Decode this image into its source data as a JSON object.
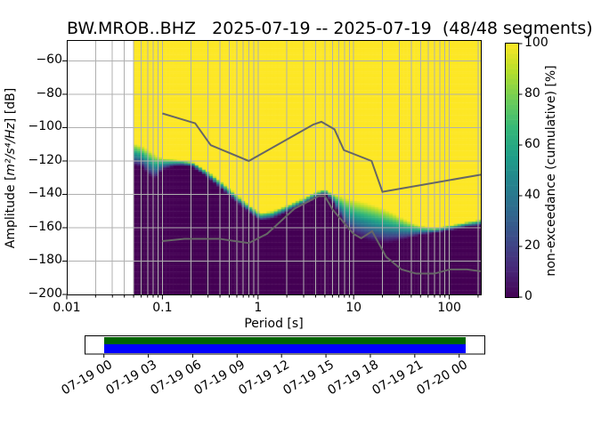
{
  "title": "BW.MROB..BHZ   2025-07-19 -- 2025-07-19  (48/48 segments)",
  "axes": {
    "xlabel": "Period [s]",
    "ylabel": {
      "pre": "Amplitude [",
      "math": "m²/s⁴/Hz",
      "post": "] [dB]"
    },
    "x_tick_labels": [
      "0.01",
      "0.1",
      "1",
      "10",
      "100"
    ],
    "y_tick_labels": [
      "−60",
      "−80",
      "−100",
      "−120",
      "−140",
      "−160",
      "−180",
      "−200"
    ]
  },
  "colorbar": {
    "label": "non-exceedance (cumulative) [%]",
    "tick_labels": [
      "0",
      "20",
      "40",
      "60",
      "80",
      "100"
    ]
  },
  "coverage": {
    "tick_labels": [
      "07-19 00",
      "07-19 03",
      "07-19 06",
      "07-19 09",
      "07-19 12",
      "07-19 15",
      "07-19 18",
      "07-19 21",
      "07-20 00"
    ]
  },
  "colors": {
    "background": "#ffffff",
    "grid": "#b0b0b0",
    "spine": "#000000",
    "noise_model_line": "#666666",
    "coverage_green": "#006400",
    "coverage_blue": "#0000ff",
    "viridis_stops": [
      "#440154",
      "#482878",
      "#3e4a89",
      "#31688e",
      "#26828e",
      "#1f9e89",
      "#35b779",
      "#6dcd59",
      "#b4de2c",
      "#fde725"
    ]
  },
  "chart_data": {
    "type": "heatmap",
    "title": "BW.MROB..BHZ   2025-07-19 -- 2025-07-19  (48/48 segments)",
    "xlabel": "Period [s]",
    "ylabel": "Amplitude [m²/s⁴/Hz] [dB]",
    "xscale": "log",
    "xlim": [
      0.01,
      213.6
    ],
    "ylim": [
      -200,
      -47.5
    ],
    "x_ticks": [
      0.01,
      0.1,
      1,
      10,
      100
    ],
    "y_ticks": [
      -60,
      -80,
      -100,
      -120,
      -140,
      -160,
      -180,
      -200
    ],
    "grid": true,
    "colorbar": {
      "label": "non-exceedance (cumulative) [%]",
      "range": [
        0,
        100
      ],
      "ticks": [
        0,
        20,
        40,
        60,
        80,
        100
      ],
      "colormap": "viridis",
      "steps": 50
    },
    "distribution_band": {
      "description": "non-exceedance transition band: db_100pct = level above which color is 100% (yellow), db_0pct = level below which color is 0% (dark purple); data start at 0.05 s, white (no data) below that period",
      "min_period_s": 0.05,
      "period_bin_octaves": 0.125,
      "db_bin_width": 1.25,
      "periods_s": [
        0.05,
        0.062,
        0.075,
        0.085,
        0.1,
        0.13,
        0.16,
        0.21,
        0.3,
        0.42,
        0.6,
        0.8,
        1.05,
        1.4,
        2.0,
        3.0,
        4.2,
        5.0,
        6.0,
        7.0,
        8.5,
        10,
        13,
        17,
        22,
        28,
        36,
        48,
        70,
        100,
        150,
        215
      ],
      "db_100pct": [
        -109,
        -111,
        -114,
        -116,
        -118,
        -119,
        -119.5,
        -120.5,
        -126,
        -132.5,
        -140,
        -146,
        -151,
        -150,
        -146.5,
        -142,
        -138,
        -136.8,
        -139.5,
        -140.5,
        -142,
        -143,
        -144.5,
        -146.5,
        -149,
        -152,
        -155.5,
        -158.5,
        -160,
        -158.5,
        -156.5,
        -155
      ],
      "db_0pct": [
        -122.5,
        -124,
        -129,
        -131,
        -125,
        -123,
        -122.5,
        -123.5,
        -130,
        -137,
        -144.5,
        -150.5,
        -155.5,
        -154.5,
        -150.5,
        -146,
        -141.5,
        -139.5,
        -144,
        -152,
        -160.5,
        -164.5,
        -167,
        -168.5,
        -169,
        -168,
        -166.5,
        -164.5,
        -163,
        -161.5,
        -159.5,
        -158.5
      ]
    },
    "noise_models": {
      "nhnm_period_db": [
        [
          0.1,
          -91.5
        ],
        [
          0.22,
          -97.4
        ],
        [
          0.32,
          -110.5
        ],
        [
          0.8,
          -120
        ],
        [
          3.8,
          -98.1
        ],
        [
          4.6,
          -96.5
        ],
        [
          6.3,
          -101
        ],
        [
          7.9,
          -113.5
        ],
        [
          15.4,
          -120
        ],
        [
          20,
          -138.5
        ],
        [
          215,
          -128.2
        ]
      ],
      "nlnm_period_db": [
        [
          0.1,
          -168
        ],
        [
          0.17,
          -166.7
        ],
        [
          0.4,
          -166.7
        ],
        [
          0.8,
          -169.2
        ],
        [
          1.24,
          -163.7
        ],
        [
          2.4,
          -148.6
        ],
        [
          4.3,
          -141.1
        ],
        [
          5,
          -141.1
        ],
        [
          6,
          -149
        ],
        [
          10,
          -163.8
        ],
        [
          12,
          -166.3
        ],
        [
          15.6,
          -162.1
        ],
        [
          21.9,
          -177.5
        ],
        [
          31.6,
          -185
        ],
        [
          45,
          -187.5
        ],
        [
          70,
          -187.5
        ],
        [
          101,
          -185
        ],
        [
          154,
          -185
        ],
        [
          215,
          -186.1
        ]
      ]
    },
    "coverage_timeline": {
      "tick_labels": [
        "07-19 00",
        "07-19 03",
        "07-19 06",
        "07-19 09",
        "07-19 12",
        "07-19 15",
        "07-19 18",
        "07-19 21",
        "07-20 00"
      ],
      "axis_fraction_colored": [
        0.047,
        0.953
      ],
      "rows": [
        {
          "name": "segment-fraction",
          "color": "#006400"
        },
        {
          "name": "data-extent",
          "color": "#0000ff"
        }
      ]
    }
  }
}
